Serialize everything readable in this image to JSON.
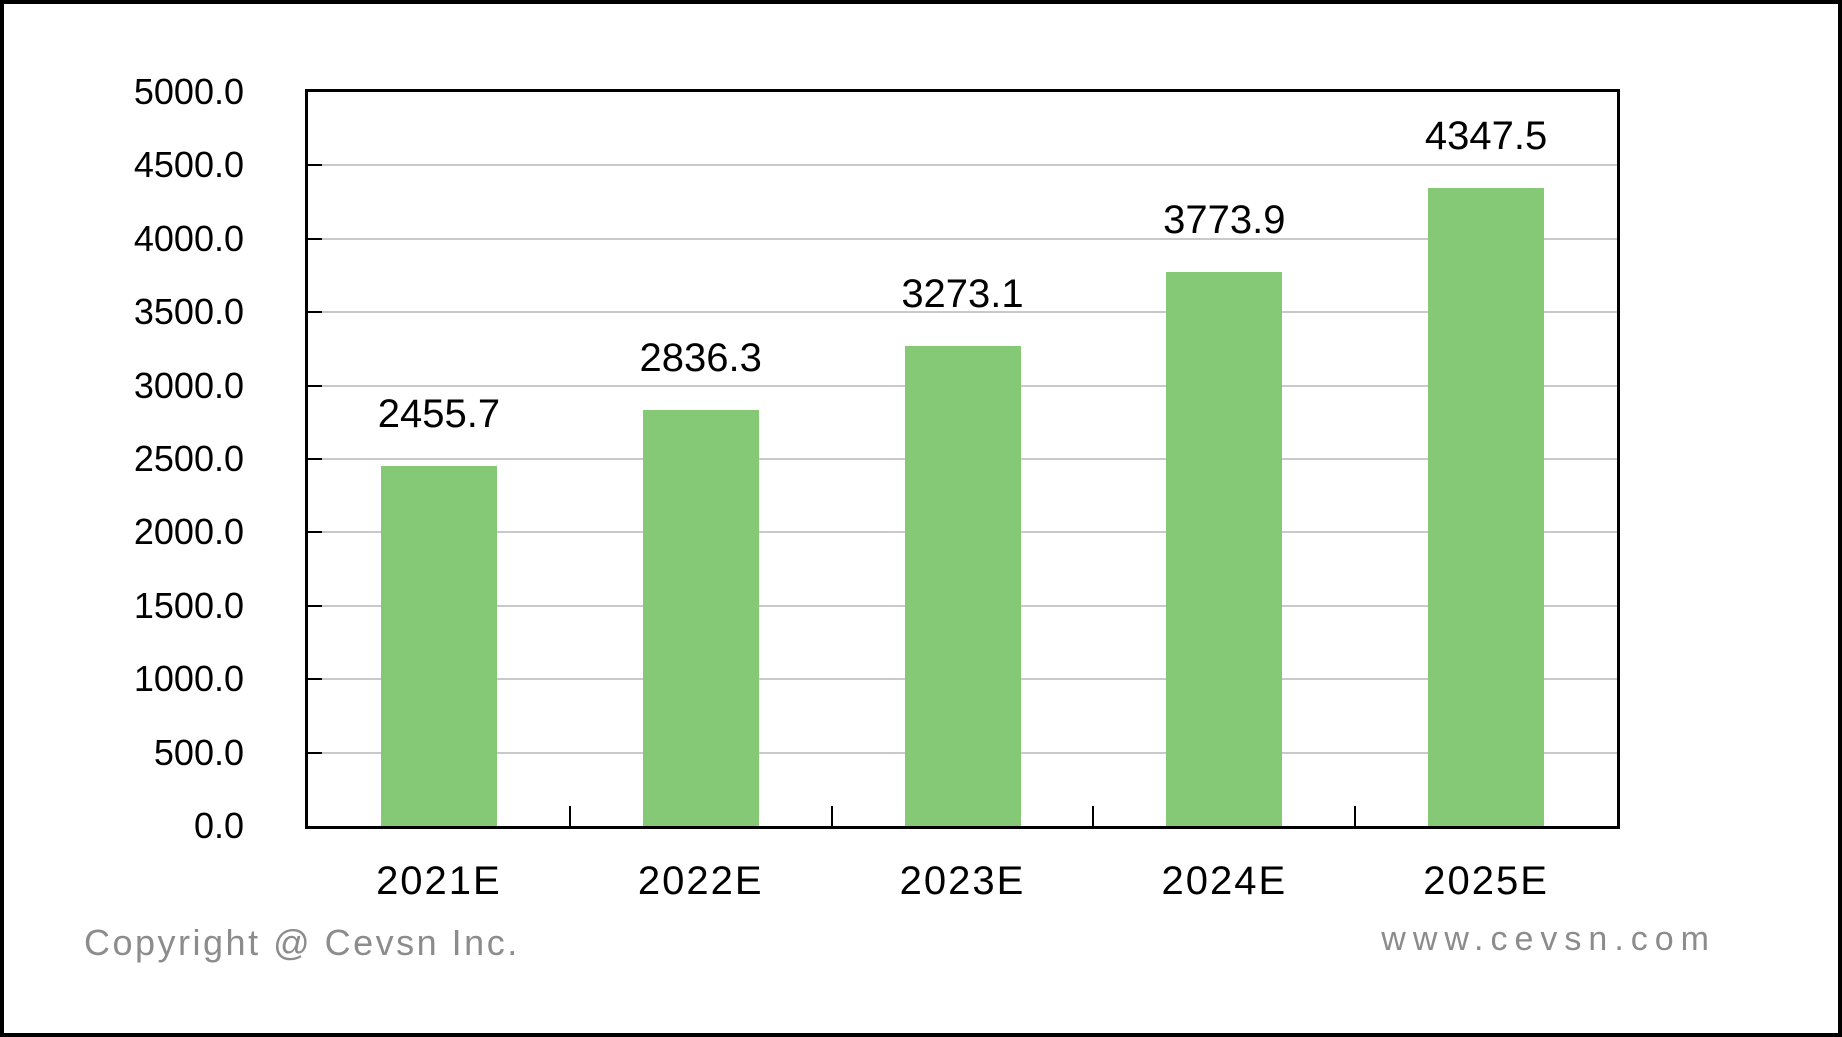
{
  "chart_data": {
    "type": "bar",
    "title": "",
    "categories": [
      "2021E",
      "2022E",
      "2023E",
      "2024E",
      "2025E"
    ],
    "values": [
      2455.7,
      2836.3,
      3273.1,
      3773.9,
      4347.5
    ],
    "value_labels": [
      "2455.7",
      "2836.3",
      "3273.1",
      "3773.9",
      "4347.5"
    ],
    "xlabel": "",
    "ylabel": "",
    "ylim": [
      0,
      5000
    ],
    "ytick_step": 500,
    "ytick_labels": [
      "0.0",
      "500.0",
      "1000.0",
      "1500.0",
      "2000.0",
      "2500.0",
      "3000.0",
      "3500.0",
      "4000.0",
      "4500.0",
      "5000.0"
    ],
    "grid": true,
    "legend": "none",
    "bar_color": "#85C876",
    "gridline_color": "#C9C9C9",
    "axis_color": "#000000",
    "label_color": "#000000"
  },
  "footer": {
    "copyright": "Copyright @ Cevsn Inc.",
    "website": "www.cevsn.com",
    "text_color": "#8C8C8C"
  }
}
